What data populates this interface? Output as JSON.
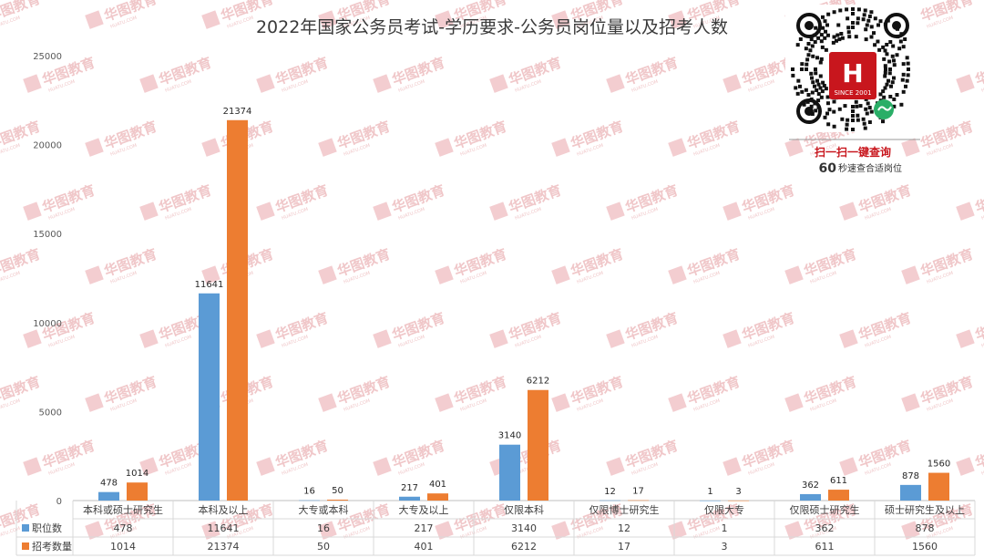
{
  "chart_data": {
    "type": "bar",
    "title": "2022年国家公务员考试-学历要求-公务员岗位量以及招考人数",
    "categories": [
      "本科或硕士研究生",
      "本科及以上",
      "大专或本科",
      "大专及以上",
      "仅限本科",
      "仅限博士研究生",
      "仅限大专",
      "仅限硕士研究生",
      "硕士研究生及以上"
    ],
    "series": [
      {
        "name": "职位数",
        "color": "#5b9bd5",
        "values": [
          478,
          11641,
          16,
          217,
          3140,
          12,
          1,
          362,
          878
        ]
      },
      {
        "name": "招考数量",
        "color": "#ed7d31",
        "values": [
          1014,
          21374,
          50,
          401,
          6212,
          17,
          3,
          611,
          1560
        ]
      }
    ],
    "yticks": [
      "0",
      "5000",
      "10000",
      "15000",
      "20000",
      "25000"
    ],
    "ylim": [
      0,
      25000
    ],
    "grid": false,
    "legend": "data-table",
    "data_table": true
  },
  "qr": {
    "logo_text": "SINCE 2001",
    "caption": "扫一扫一键查询",
    "sub_big": "60",
    "sub_text": "秒速查合适岗位"
  },
  "watermark": {
    "text": "华图教育",
    "sub": "HUATU.COM"
  }
}
